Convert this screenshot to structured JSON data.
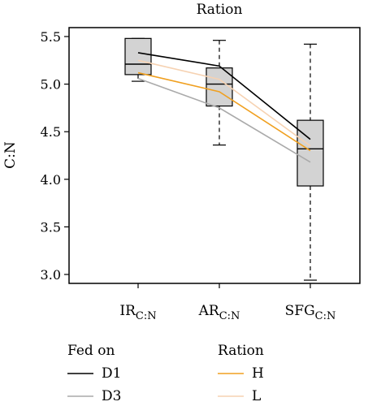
{
  "chart_data": {
    "type": "boxplot",
    "title": "Ration",
    "ylabel": "C:N",
    "ylim": [
      2.95,
      5.58
    ],
    "yticks": [
      3.0,
      3.5,
      4.0,
      4.5,
      5.0,
      5.5
    ],
    "ytick_labels": [
      "3.0",
      "3.5",
      "4.0",
      "4.5",
      "5.0",
      "5.5"
    ],
    "categories": [
      {
        "main": "IR",
        "sub": "C:N"
      },
      {
        "main": "AR",
        "sub": "C:N"
      },
      {
        "main": "SFG",
        "sub": "C:N"
      }
    ],
    "boxes": [
      {
        "whisker_low": 5.03,
        "q1": 5.1,
        "median": 5.21,
        "q3": 5.48,
        "whisker_high": 5.48
      },
      {
        "whisker_low": 4.36,
        "q1": 4.77,
        "median": 5.0,
        "q3": 5.17,
        "whisker_high": 5.46
      },
      {
        "whisker_low": 2.94,
        "q1": 3.93,
        "median": 4.32,
        "q3": 4.62,
        "whisker_high": 5.42
      }
    ],
    "series": [
      {
        "name": "D1",
        "group": "Fed on",
        "color": "#000000",
        "values": [
          5.33,
          5.19,
          4.42
        ]
      },
      {
        "name": "D3",
        "group": "Fed on",
        "color": "#aaaaaa",
        "values": [
          5.06,
          4.75,
          4.18
        ]
      },
      {
        "name": "H",
        "group": "Ration",
        "color": "#f0a020",
        "values": [
          5.12,
          4.92,
          4.3
        ]
      },
      {
        "name": "L",
        "group": "Ration",
        "color": "#f6d2b2",
        "values": [
          5.25,
          5.05,
          4.35
        ]
      }
    ],
    "grid": false,
    "legend": {
      "placement": "bottom",
      "groups": [
        {
          "title": "Fed on",
          "items": [
            "D1",
            "D3"
          ]
        },
        {
          "title": "Ration",
          "items": [
            "H",
            "L"
          ]
        }
      ]
    }
  }
}
